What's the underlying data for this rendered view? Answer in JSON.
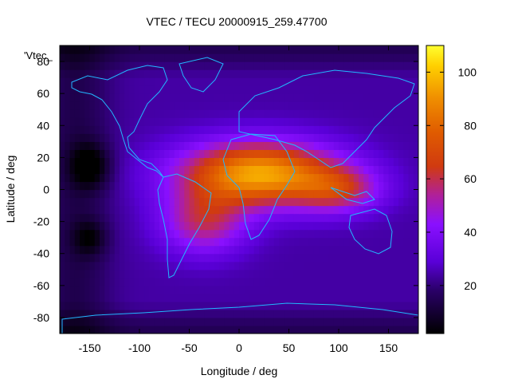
{
  "chart_data": {
    "type": "heatmap",
    "title": "VTEC / TECU 20000915_259.47700",
    "xlabel": "Longitude / deg",
    "ylabel": "Latitude / deg",
    "series_label": "'Vtec_",
    "xlim": [
      -180,
      180
    ],
    "ylim": [
      -90,
      90
    ],
    "x_ticks": [
      -150,
      -100,
      -50,
      0,
      50,
      100,
      150
    ],
    "y_ticks": [
      -80,
      -60,
      -40,
      -20,
      0,
      20,
      40,
      60,
      80
    ],
    "colorbar": {
      "range": [
        2,
        110
      ],
      "ticks": [
        20,
        40,
        60,
        80,
        100
      ],
      "palette": "black-blue-purple-red-orange-yellow"
    },
    "features": [
      {
        "name": "equatorial anomaly maximum",
        "lon": 20,
        "lat": 10,
        "value": 95
      },
      {
        "name": "southern crest",
        "lon": -35,
        "lat": -20,
        "value": 65
      },
      {
        "name": "nightside minimum",
        "lon": -150,
        "lat": 15,
        "value": 3
      },
      {
        "name": "southern nightside minimum",
        "lon": -150,
        "lat": -30,
        "value": 8
      }
    ],
    "background_value": 24
  }
}
